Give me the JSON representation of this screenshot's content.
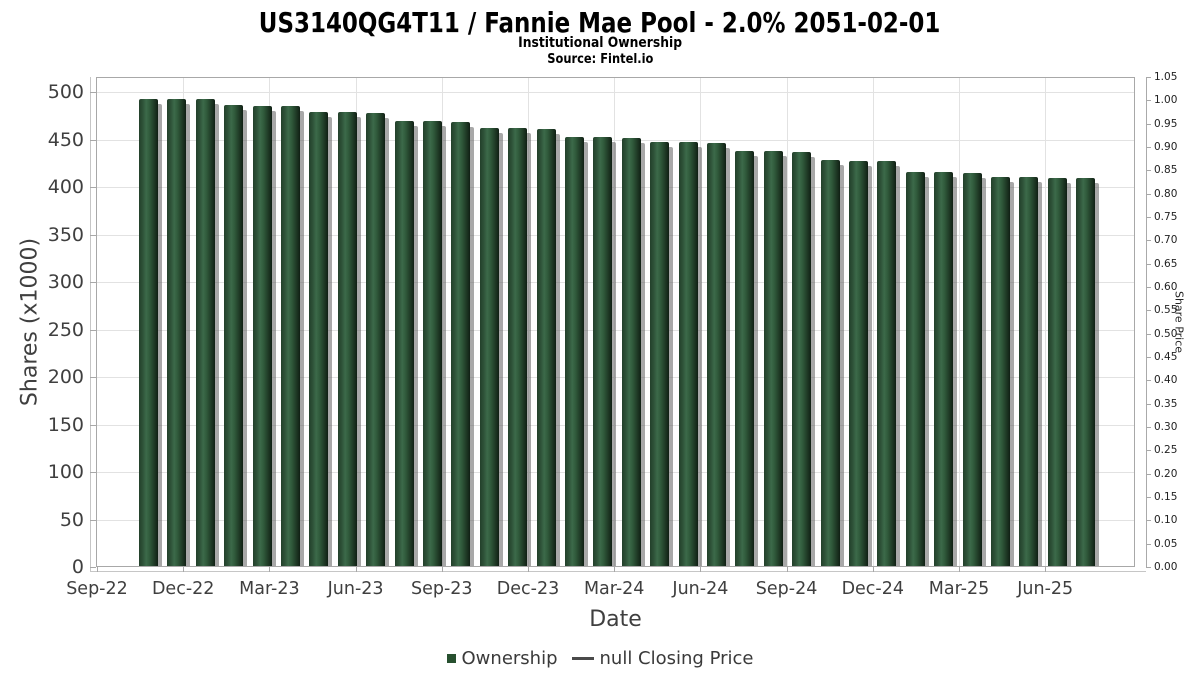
{
  "header": {
    "title": "US3140QG4T11 / Fannie Mae Pool - 2.0% 2051-02-01",
    "subtitle": "Institutional Ownership",
    "source": "Source: Fintel.io"
  },
  "chart_data": {
    "type": "bar",
    "title": "US3140QG4T11 / Fannie Mae Pool - 2.0% 2051-02-01",
    "subtitle": "Institutional Ownership",
    "source": "Source: Fintel.io",
    "xlabel": "Date",
    "ylabel_left": "Shares (x1000)",
    "ylabel_right": "Share Price",
    "x": [
      "Oct-22",
      "Nov-22",
      "Dec-22",
      "Jan-23",
      "Feb-23",
      "Mar-23",
      "Apr-23",
      "May-23",
      "Jun-23",
      "Jul-23",
      "Aug-23",
      "Sep-23",
      "Oct-23",
      "Nov-23",
      "Dec-23",
      "Jan-24",
      "Feb-24",
      "Mar-24",
      "Apr-24",
      "May-24",
      "Jun-24",
      "Jul-24",
      "Aug-24",
      "Sep-24",
      "Oct-24",
      "Nov-24",
      "Dec-24",
      "Jan-25",
      "Feb-25",
      "Mar-25",
      "Apr-25",
      "May-25",
      "Jun-25",
      "Jul-25"
    ],
    "values": [
      492,
      492,
      492,
      485,
      484,
      484,
      478,
      478,
      477,
      468,
      468,
      467,
      461,
      461,
      460,
      452,
      452,
      451,
      446,
      446,
      445,
      437,
      437,
      436,
      427,
      426,
      426,
      415,
      415,
      414,
      409,
      409,
      408,
      408
    ],
    "x_ticks": [
      "Sep-22",
      "Dec-22",
      "Mar-23",
      "Jun-23",
      "Sep-23",
      "Dec-23",
      "Mar-24",
      "Jun-24",
      "Sep-24",
      "Dec-24",
      "Mar-25",
      "Jun-25"
    ],
    "y_ticks_left": [
      0,
      50,
      100,
      150,
      200,
      250,
      300,
      350,
      400,
      450,
      500
    ],
    "y_ticks_right": [
      "0.00",
      "0.05",
      "0.10",
      "0.15",
      "0.20",
      "0.25",
      "0.30",
      "0.35",
      "0.40",
      "0.45",
      "0.50",
      "0.55",
      "0.60",
      "0.65",
      "0.70",
      "0.75",
      "0.80",
      "0.85",
      "0.90",
      "0.95",
      "1.00",
      "1.05"
    ],
    "ylim_left": [
      0,
      516
    ],
    "ylim_right": [
      0,
      1.05
    ],
    "grid": true,
    "legend_position": "bottom",
    "legend": [
      {
        "label": "Ownership",
        "swatch": "square",
        "color": "#27502f"
      },
      {
        "label": "null Closing Price",
        "swatch": "dash",
        "color": "#4a4a4a"
      }
    ],
    "colors": {
      "bar_base": "#2d5137",
      "bar_highlight": "#3c6a4a",
      "bar_edge": "#101f14",
      "bar_shadow": "rgba(96,96,96,0.55)",
      "grid": "#e2e2e2",
      "plot_border": "#a8a8a8",
      "tick_text": "#3f3f3f"
    }
  }
}
